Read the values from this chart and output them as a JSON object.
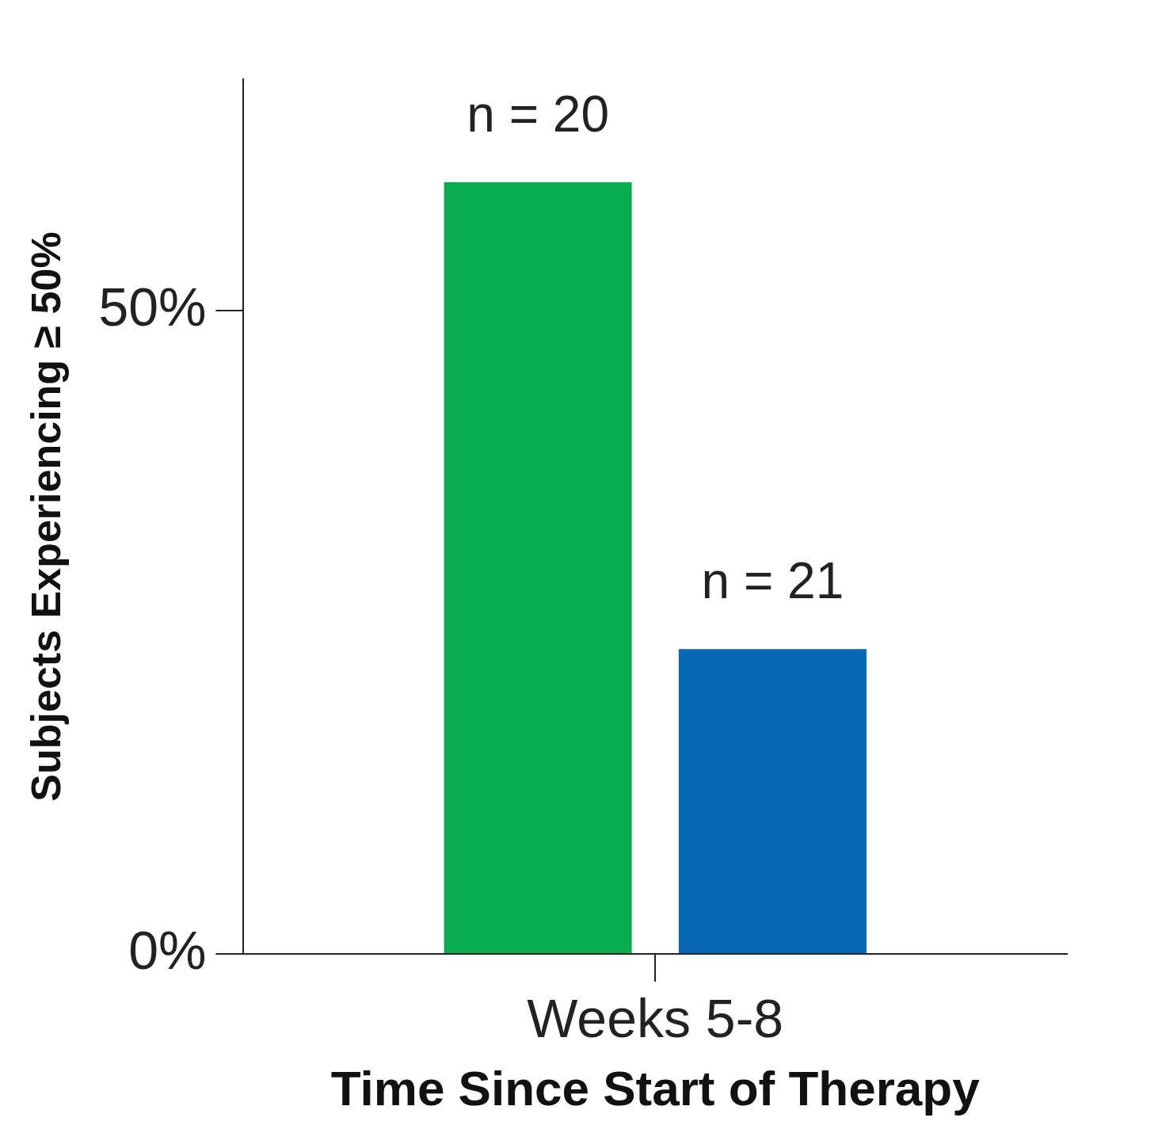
{
  "chart_data": {
    "type": "bar",
    "xlabel": "Time Since Start of Therapy",
    "ylabel": "Subjects Experiencing ≥ 50%",
    "categories": [
      "Weeks 5-8"
    ],
    "series": [
      {
        "color": "#08ad4f",
        "values": [
          60
        ]
      },
      {
        "color": "#0468b5",
        "values": [
          23.7
        ]
      }
    ],
    "annotations": [
      "n = 20",
      "n = 21"
    ],
    "ylim": [
      0,
      68
    ],
    "yticks": [
      {
        "value": 0,
        "label": "0%"
      },
      {
        "value": 50,
        "label": "50%"
      }
    ],
    "grid": false,
    "legend": false
  }
}
